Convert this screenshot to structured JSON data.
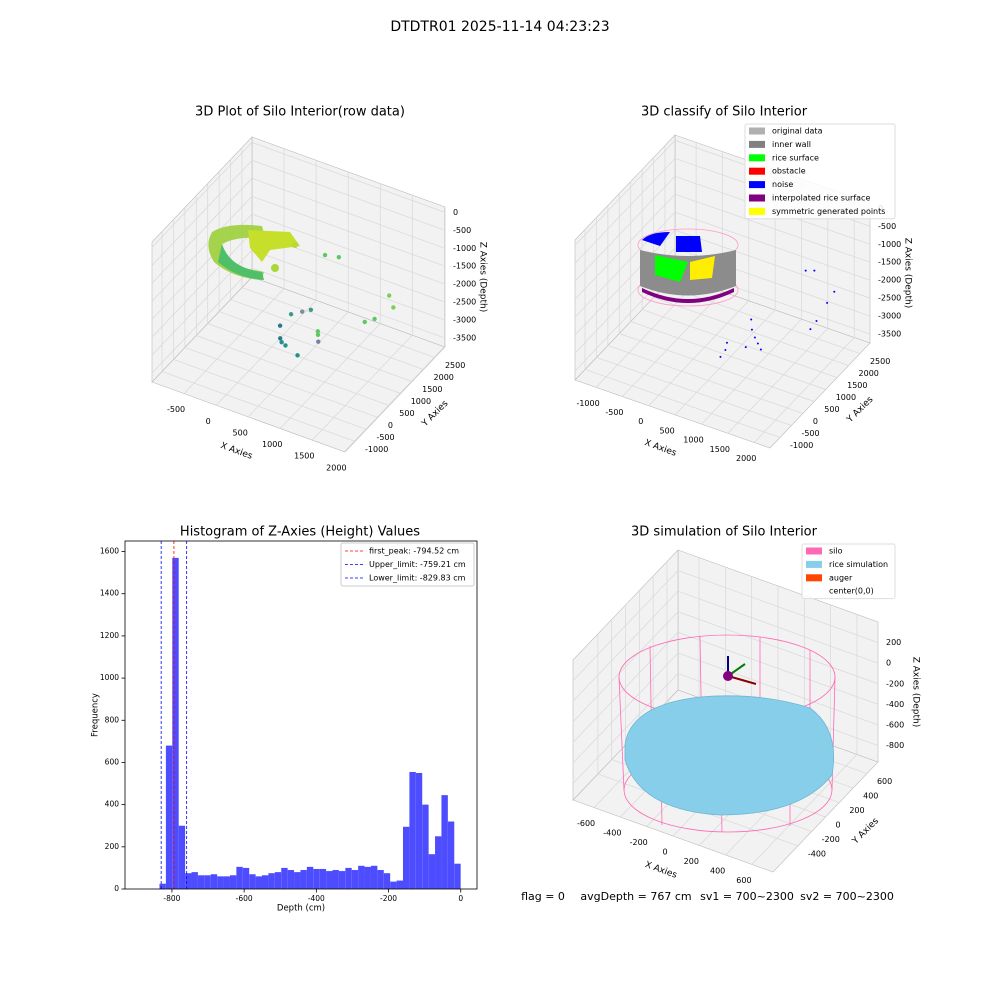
{
  "title": "DTDTR01 2025-11-14 04:23:23",
  "footer": [
    "flag = 0",
    "avgDepth = 767 cm",
    "sv1 = 700~2300",
    "sv2 = 700~2300"
  ],
  "chart_data": [
    {
      "type": "scatter3d",
      "title": "3D Plot of Silo Interior(row data)",
      "xlabel": "X Axies",
      "ylabel": "Y Axies",
      "zlabel": "Z Axies (Depth)",
      "xlim": [
        -1000,
        2010
      ],
      "ylim": [
        -1440,
        2940
      ],
      "zlim": [
        -3750,
        150
      ],
      "xticks": [
        -500,
        0,
        500,
        1000,
        1500,
        2000
      ],
      "yticks": [
        -1000,
        -500,
        0,
        500,
        1000,
        1500,
        2000,
        2500
      ],
      "zticks": [
        -3500,
        -3000,
        -2500,
        -2000,
        -1500,
        -1000,
        -500,
        0
      ],
      "points": {
        "x": [
          454,
          600,
          1350,
          1450,
          1300,
          1200,
          300,
          420,
          520,
          700,
          720,
          760,
          200,
          380,
          420,
          480,
          650
        ],
        "y": [
          2055,
          2250,
          2350,
          2250,
          1850,
          1700,
          1000,
          1150,
          1250,
          1050,
          1000,
          900,
          800,
          300,
          250,
          250,
          300
        ],
        "z": [
          -1605,
          -1700,
          -2350,
          -2550,
          -2700,
          -2750,
          -2650,
          -2600,
          -2550,
          -2900,
          -2950,
          -3050,
          -2900,
          -2800,
          -2850,
          -2900,
          -3100
        ],
        "colors": [
          "#5ec962",
          "#5ec962",
          "#7ad151",
          "#7ad151",
          "#5ec962",
          "#5ec962",
          "#3b9a8c",
          "#7f8f8f",
          "#3b9a8c",
          "#5ec962",
          "#5ec962",
          "#7f7f9f",
          "#2a788e",
          "#2a788e",
          "#21918c",
          "#21918c",
          "#21918c"
        ]
      }
    },
    {
      "type": "scatter3d",
      "title": "3D classify of Silo Interior",
      "xlabel": "X Axies",
      "ylabel": "Y Axies",
      "zlabel": "Z Axies (Depth)",
      "xlim": [
        -1400,
        2300
      ],
      "ylim": [
        -1440,
        2940
      ],
      "zlim": [
        -3750,
        150
      ],
      "xticks": [
        -1000,
        -500,
        0,
        500,
        1000,
        1500,
        2000
      ],
      "yticks": [
        -1000,
        -500,
        0,
        500,
        1000,
        1500,
        2000,
        2500
      ],
      "zticks": [
        -3500,
        -3000,
        -2500,
        -2000,
        -1500,
        -1000,
        -500,
        0
      ],
      "legend": [
        {
          "name": "original data",
          "color": "#b0b0b0"
        },
        {
          "name": "inner wall",
          "color": "#808080"
        },
        {
          "name": "rice surface",
          "color": "#00ff00"
        },
        {
          "name": "obstacle",
          "color": "#ff0000"
        },
        {
          "name": "noise",
          "color": "#0000ff"
        },
        {
          "name": "interpolated rice surface",
          "color": "#800080"
        },
        {
          "name": "symmetric generated points",
          "color": "#ffff00"
        }
      ],
      "points": {
        "x": [
          1400,
          1500,
          1900,
          1850,
          1800,
          1750,
          800,
          900,
          1000,
          1100,
          1200,
          600,
          700,
          650,
          1000
        ],
        "y": [
          2200,
          2350,
          2300,
          2100,
          1750,
          1600,
          1200,
          1000,
          900,
          800,
          700,
          600,
          300,
          200,
          500
        ],
        "z": [
          -1700,
          -1750,
          -2100,
          -2300,
          -2600,
          -2750,
          -2700,
          -2800,
          -2900,
          -2950,
          -3000,
          -3050,
          -3000,
          -3150,
          -2900
        ],
        "colors": [
          "#0000ff",
          "#0000ff",
          "#0000ff",
          "#0000ff",
          "#0000ff",
          "#0000ff",
          "#0000ff",
          "#0000ff",
          "#0000ff",
          "#0000ff",
          "#0000ff",
          "#0000ff",
          "#0000ff",
          "#0000ff",
          "#0000ff"
        ]
      }
    },
    {
      "type": "histogram",
      "title": "Histogram of Z-Axies (Height) Values",
      "xlabel": "Depth (cm)",
      "ylabel": "Frequency",
      "color": "#4d4dff",
      "xlim": [
        -930,
        45
      ],
      "ylim": [
        0,
        1650
      ],
      "xticks": [
        -800,
        -600,
        -400,
        -200,
        0
      ],
      "yticks": [
        0,
        200,
        400,
        600,
        800,
        1000,
        1200,
        1400,
        1600
      ],
      "bins": [
        -834.5,
        -816.75,
        -799,
        -781.25,
        -763.5,
        -745.75,
        -728,
        -710.25,
        -692.5,
        -674.75,
        -657,
        -639.25,
        -621.5,
        -603.75,
        -586,
        -568.25,
        -550.5,
        -532.75,
        -515,
        -497.25,
        -479.5,
        -461.75,
        -444,
        -426.25,
        -408.5,
        -390.75,
        -373,
        -355.25,
        -337.5,
        -319.75,
        -302,
        -284.25,
        -266.5,
        -248.75,
        -231,
        -213.25,
        -195.5,
        -177.75,
        -160,
        -142.25,
        -124.5,
        -106.75,
        -89,
        -71.25,
        -53.5,
        -35.75,
        -18,
        -0.25
      ],
      "values": [
        25,
        680,
        1570,
        300,
        75,
        80,
        65,
        65,
        70,
        60,
        60,
        65,
        105,
        100,
        70,
        60,
        65,
        75,
        80,
        100,
        90,
        80,
        90,
        105,
        95,
        95,
        85,
        90,
        85,
        100,
        90,
        110,
        105,
        110,
        90,
        75,
        35,
        40,
        295,
        555,
        550,
        400,
        165,
        250,
        445,
        320,
        120
      ],
      "vlines": [
        {
          "value": -794.52,
          "label": "first_peak: -794.52 cm",
          "color": "#ff0000"
        },
        {
          "value": -759.21,
          "label": "Upper_limit: -759.21 cm",
          "color": "#0000ff"
        },
        {
          "value": -829.83,
          "label": "Lower_limit: -829.83 cm",
          "color": "#0000ff"
        }
      ]
    },
    {
      "type": "surface3d",
      "title": "3D simulation of Silo Interior",
      "xlabel": "X Axies",
      "ylabel": "Y Axies",
      "zlabel": "Z Axies (Depth)",
      "xlim": [
        -760,
        760
      ],
      "ylim": [
        -760,
        760
      ],
      "zlim": [
        -960,
        400
      ],
      "xticks": [
        -600,
        -400,
        -200,
        0,
        200,
        400,
        600
      ],
      "yticks": [
        -400,
        -200,
        0,
        200,
        400,
        600
      ],
      "zticks": [
        -800,
        -600,
        -400,
        -200,
        0,
        200
      ],
      "legend": [
        {
          "name": "silo",
          "color": "#ff69b4"
        },
        {
          "name": "rice simulation",
          "color": "#87ceeb"
        },
        {
          "name": "auger",
          "color": "#ff4500"
        },
        {
          "name": "center(0,0)",
          "color": "#ffffff"
        }
      ]
    }
  ]
}
